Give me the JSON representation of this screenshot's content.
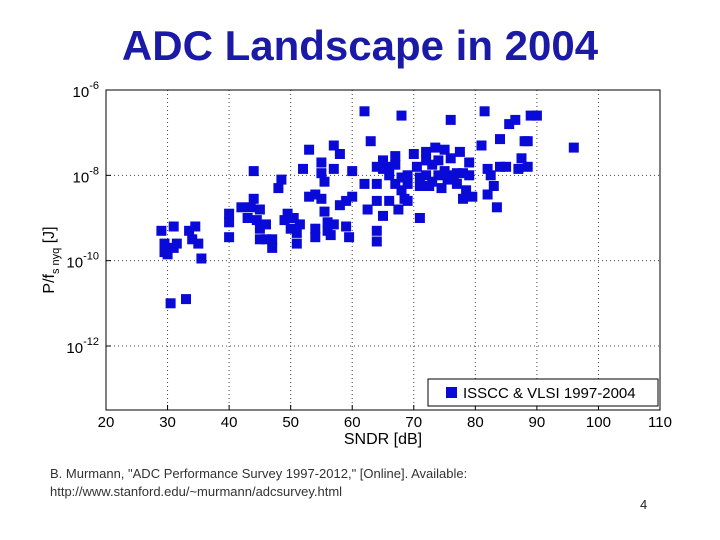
{
  "slide": {
    "title": "ADC Landscape in 2004",
    "citation_line1": "B. Murmann, \"ADC Performance Survey 1997-2012,\" [Online]. Available:",
    "citation_line2": "http://www.stanford.edu/~murmann/adcsurvey.html",
    "page_number": "4"
  },
  "chart_data": {
    "type": "scatter",
    "title": "",
    "xlabel": "SNDR [dB]",
    "ylabel": "P/fs,nyq [J]",
    "ylabel_parts": {
      "base": "P/f",
      "sub": "s nyq",
      "unit": " [J]"
    },
    "xlim": [
      20,
      110
    ],
    "ylim_log10": [
      -13.5,
      -6.0
    ],
    "y_scale": "log",
    "x_ticks": [
      20,
      30,
      40,
      50,
      60,
      70,
      80,
      90,
      100,
      110
    ],
    "y_ticks": [
      {
        "exp": -6,
        "label_base": "10",
        "label_exp": "-6"
      },
      {
        "exp": -8,
        "label_base": "10",
        "label_exp": "-8"
      },
      {
        "exp": -10,
        "label_base": "10",
        "label_exp": "-10"
      },
      {
        "exp": -12,
        "label_base": "10",
        "label_exp": "-12"
      }
    ],
    "grid": true,
    "legend_position": "bottom-right",
    "colors": {
      "marker": "#0a0ad8",
      "axis": "#000000",
      "grid": "#444444"
    },
    "series": [
      {
        "name": "ISSCC & VLSI 1997-2004",
        "x_y_log10": [
          [
            29.0,
            -9.3
          ],
          [
            29.5,
            -9.6
          ],
          [
            29.5,
            -9.8
          ],
          [
            30.0,
            -9.85
          ],
          [
            30.5,
            -11.0
          ],
          [
            31.0,
            -9.2
          ],
          [
            31.0,
            -9.7
          ],
          [
            31.5,
            -9.6
          ],
          [
            33.0,
            -10.9
          ],
          [
            33.5,
            -9.3
          ],
          [
            34.0,
            -9.5
          ],
          [
            34.5,
            -9.2
          ],
          [
            35.0,
            -9.6
          ],
          [
            35.5,
            -9.95
          ],
          [
            40.0,
            -8.9
          ],
          [
            40.0,
            -9.1
          ],
          [
            40.0,
            -9.45
          ],
          [
            42.0,
            -8.75
          ],
          [
            43.0,
            -9.0
          ],
          [
            43.5,
            -8.75
          ],
          [
            44.0,
            -7.9
          ],
          [
            44.0,
            -8.55
          ],
          [
            44.5,
            -9.05
          ],
          [
            45.0,
            -8.8
          ],
          [
            45.0,
            -9.25
          ],
          [
            45.0,
            -9.5
          ],
          [
            46.0,
            -9.15
          ],
          [
            46.0,
            -9.5
          ],
          [
            47.0,
            -9.5
          ],
          [
            47.0,
            -9.7
          ],
          [
            48.0,
            -8.3
          ],
          [
            48.5,
            -8.1
          ],
          [
            49.0,
            -9.05
          ],
          [
            49.5,
            -8.9
          ],
          [
            50.0,
            -9.25
          ],
          [
            50.5,
            -9.0
          ],
          [
            51.0,
            -9.35
          ],
          [
            51.5,
            -9.15
          ],
          [
            51.0,
            -9.6
          ],
          [
            52.0,
            -7.85
          ],
          [
            53.0,
            -7.4
          ],
          [
            53.0,
            -8.5
          ],
          [
            54.0,
            -8.45
          ],
          [
            54.0,
            -9.25
          ],
          [
            54.0,
            -9.45
          ],
          [
            55.0,
            -7.7
          ],
          [
            55.0,
            -7.95
          ],
          [
            55.5,
            -8.15
          ],
          [
            55.0,
            -8.55
          ],
          [
            55.5,
            -8.85
          ],
          [
            56.0,
            -9.1
          ],
          [
            56.0,
            -9.3
          ],
          [
            56.5,
            -9.4
          ],
          [
            57.0,
            -7.3
          ],
          [
            57.0,
            -7.85
          ],
          [
            57.0,
            -9.15
          ],
          [
            58.0,
            -7.5
          ],
          [
            58.0,
            -8.7
          ],
          [
            59.0,
            -8.6
          ],
          [
            59.0,
            -9.2
          ],
          [
            59.5,
            -9.45
          ],
          [
            60.0,
            -7.9
          ],
          [
            60.0,
            -8.5
          ],
          [
            62.0,
            -6.5
          ],
          [
            62.0,
            -8.2
          ],
          [
            62.5,
            -8.8
          ],
          [
            63.0,
            -7.2
          ],
          [
            64.0,
            -7.8
          ],
          [
            64.0,
            -8.2
          ],
          [
            64.0,
            -8.6
          ],
          [
            64.0,
            -9.3
          ],
          [
            64.0,
            -9.55
          ],
          [
            65.0,
            -7.65
          ],
          [
            65.0,
            -7.85
          ],
          [
            65.0,
            -8.95
          ],
          [
            66.0,
            -7.8
          ],
          [
            66.0,
            -8.0
          ],
          [
            66.0,
            -8.6
          ],
          [
            67.0,
            -7.55
          ],
          [
            67.0,
            -7.75
          ],
          [
            67.0,
            -8.2
          ],
          [
            67.5,
            -8.8
          ],
          [
            68.0,
            -6.6
          ],
          [
            68.0,
            -8.05
          ],
          [
            68.5,
            -8.55
          ],
          [
            68.0,
            -8.35
          ],
          [
            69.0,
            -8.0
          ],
          [
            69.0,
            -8.2
          ],
          [
            69.0,
            -8.6
          ],
          [
            70.0,
            -7.5
          ],
          [
            70.5,
            -7.8
          ],
          [
            71.0,
            -8.05
          ],
          [
            71.0,
            -8.25
          ],
          [
            71.0,
            -9.0
          ],
          [
            72.0,
            -7.45
          ],
          [
            72.0,
            -7.65
          ],
          [
            72.0,
            -8.0
          ],
          [
            72.5,
            -8.25
          ],
          [
            73.0,
            -7.75
          ],
          [
            73.0,
            -8.15
          ],
          [
            73.5,
            -7.35
          ],
          [
            74.0,
            -7.65
          ],
          [
            74.0,
            -8.0
          ],
          [
            74.5,
            -8.3
          ],
          [
            75.0,
            -7.4
          ],
          [
            75.0,
            -7.9
          ],
          [
            75.5,
            -8.1
          ],
          [
            76.0,
            -6.7
          ],
          [
            76.0,
            -7.6
          ],
          [
            76.5,
            -8.0
          ],
          [
            77.0,
            -7.95
          ],
          [
            77.0,
            -8.2
          ],
          [
            77.5,
            -7.45
          ],
          [
            78.0,
            -7.95
          ],
          [
            78.0,
            -8.55
          ],
          [
            78.5,
            -8.35
          ],
          [
            79.0,
            -7.7
          ],
          [
            79.0,
            -8.0
          ],
          [
            79.5,
            -8.5
          ],
          [
            81.0,
            -7.3
          ],
          [
            81.5,
            -6.5
          ],
          [
            82.0,
            -8.45
          ],
          [
            82.0,
            -7.85
          ],
          [
            82.5,
            -8.0
          ],
          [
            83.0,
            -8.25
          ],
          [
            83.5,
            -8.75
          ],
          [
            84.0,
            -7.15
          ],
          [
            84.0,
            -7.8
          ],
          [
            85.0,
            -7.8
          ],
          [
            85.5,
            -6.8
          ],
          [
            86.5,
            -6.7
          ],
          [
            87.0,
            -7.85
          ],
          [
            87.5,
            -7.6
          ],
          [
            88.0,
            -7.2
          ],
          [
            88.5,
            -7.2
          ],
          [
            88.5,
            -7.8
          ],
          [
            89.0,
            -6.6
          ],
          [
            90.0,
            -6.6
          ],
          [
            96.0,
            -7.35
          ],
          [
            29.8,
            -9.7
          ]
        ]
      }
    ]
  }
}
